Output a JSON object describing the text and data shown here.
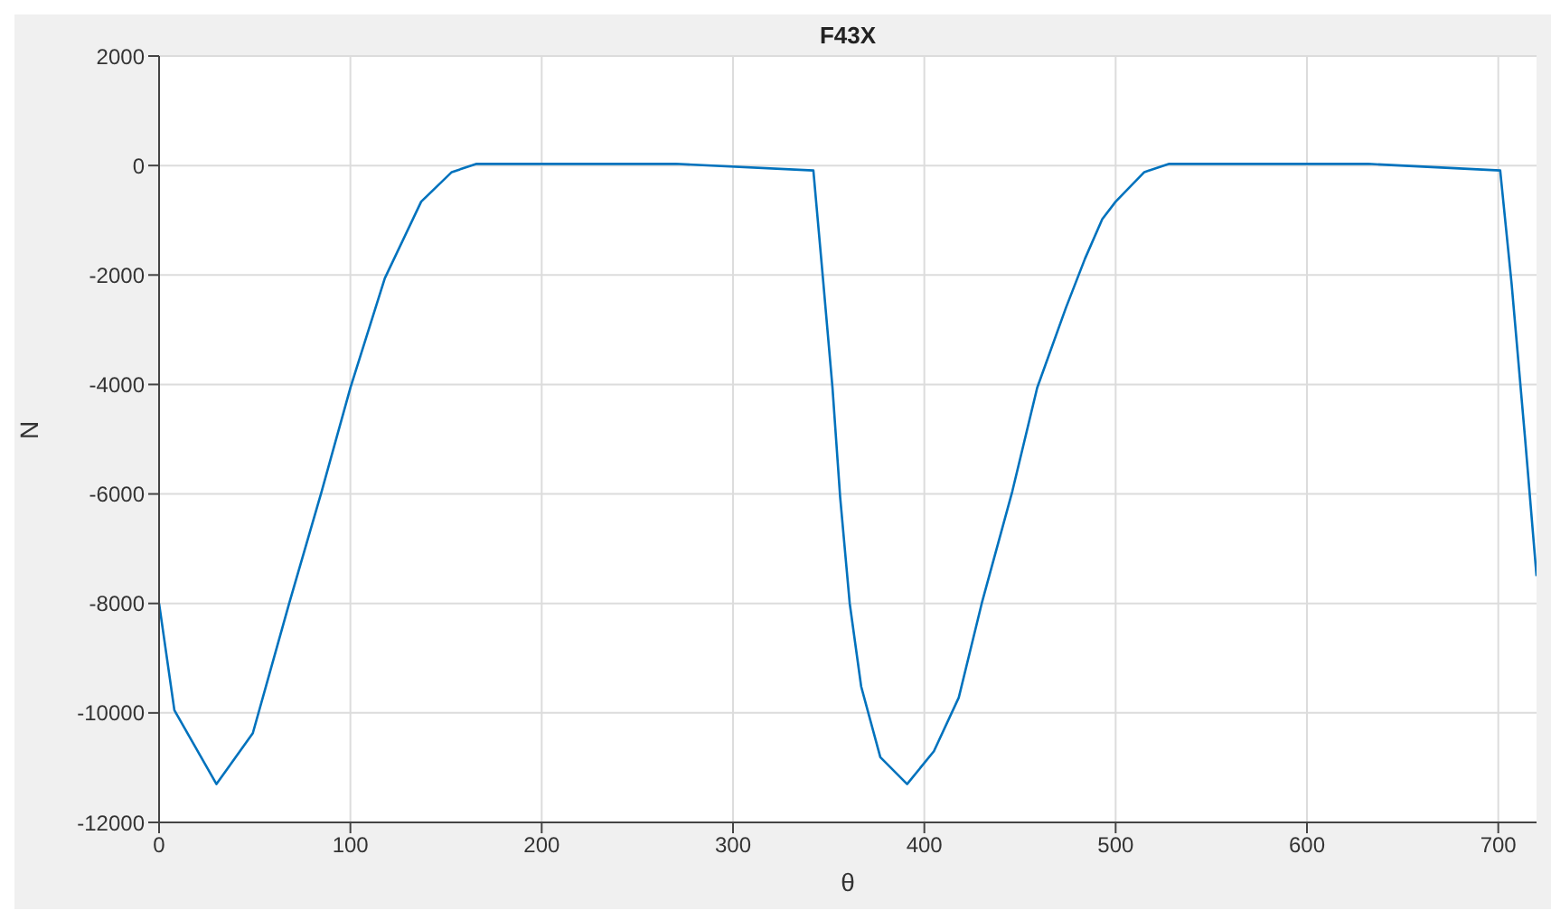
{
  "chart_data": {
    "type": "line",
    "title": "F43X",
    "xlabel": "θ",
    "ylabel": "N",
    "x": [
      0,
      8,
      30,
      49,
      68,
      85,
      100,
      118,
      137,
      153,
      166,
      200,
      270,
      342,
      347,
      352,
      356,
      361,
      367,
      377,
      391,
      405,
      418,
      430,
      446,
      459,
      474,
      484,
      493,
      500,
      515,
      528,
      560,
      632,
      701,
      707,
      714,
      720
    ],
    "series": [
      {
        "color": "#0072bd",
        "values": [
          -8000,
          -9950,
          -11300,
          -10370,
          -8000,
          -5950,
          -4060,
          -2060,
          -660,
          -120,
          30,
          30,
          30,
          -90,
          -2060,
          -4060,
          -6060,
          -8000,
          -9520,
          -10810,
          -11300,
          -10700,
          -9720,
          -8000,
          -5950,
          -4060,
          -2600,
          -1700,
          -980,
          -660,
          -120,
          30,
          30,
          30,
          -90,
          -2170,
          -4980,
          -7500
        ]
      }
    ],
    "xlim": [
      0,
      720
    ],
    "xticks": [
      0,
      100,
      200,
      300,
      400,
      500,
      600,
      700
    ],
    "ylim": [
      -12000,
      2000
    ],
    "yticks": [
      -12000,
      -10000,
      -8000,
      -6000,
      -4000,
      -2000,
      0,
      2000
    ],
    "grid": true,
    "legend": false,
    "marker": "none",
    "line_style": "solid"
  }
}
